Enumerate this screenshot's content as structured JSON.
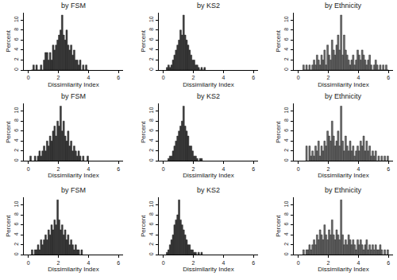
{
  "chart_data": [
    {
      "type": "histogram",
      "title": "by FSM",
      "x_label": "Dissimilarity Index",
      "y_label": "Percent",
      "color": "#3a3a3a",
      "bins": [
        0.2,
        0.3,
        0.4,
        0.5,
        0.6,
        0.7,
        0.8,
        0.9,
        1.0,
        1.1,
        1.2,
        1.3,
        1.4,
        1.5,
        1.6,
        1.7,
        1.8,
        1.9,
        2.0,
        2.1,
        2.2,
        2.3,
        2.4,
        2.5,
        2.6,
        2.7,
        2.8,
        2.9,
        3.0,
        3.1,
        3.2,
        3.3,
        3.4,
        3.5,
        3.6,
        3.7,
        3.8,
        3.9,
        4.0
      ],
      "values": [
        0,
        1,
        0,
        1,
        0,
        0,
        1,
        0,
        2,
        3.5,
        3.5,
        2,
        3.5,
        2,
        5,
        4,
        5,
        6,
        7,
        8,
        11,
        7,
        6,
        8,
        5,
        4,
        5,
        3,
        4,
        2,
        2,
        1,
        2,
        0,
        1,
        0,
        1,
        0
      ],
      "xlim": [
        -0.3,
        6.3
      ],
      "xticks": [
        0,
        2,
        4,
        6
      ],
      "ylim": [
        0,
        11.5
      ],
      "yticks": [
        0,
        2,
        4,
        6,
        8,
        10
      ]
    },
    {
      "type": "histogram",
      "title": "by KS2",
      "x_label": "Dissimilarity Index",
      "y_label": "Percent",
      "color": "#3a3a3a",
      "bins": [
        0.2,
        0.3,
        0.4,
        0.5,
        0.6,
        0.7,
        0.8,
        0.9,
        1.0,
        1.1,
        1.2,
        1.3,
        1.4,
        1.5,
        1.6,
        1.7,
        1.8,
        1.9,
        2.0,
        2.1,
        2.2,
        2.3,
        2.4,
        2.5,
        2.6,
        2.7,
        2.8
      ],
      "values": [
        0.5,
        1,
        0.5,
        1,
        2,
        3,
        4,
        5,
        6,
        8,
        7,
        11,
        7,
        6,
        5,
        4,
        3,
        2,
        2,
        1,
        1,
        0.5,
        0,
        0.5,
        0,
        0.5
      ],
      "xlim": [
        -0.3,
        6.3
      ],
      "xticks": [
        0,
        2,
        4,
        6
      ],
      "ylim": [
        0,
        11.5
      ],
      "yticks": [
        0,
        2,
        4,
        6,
        8,
        10
      ]
    },
    {
      "type": "histogram",
      "title": "by Ethnicity",
      "x_label": "Dissimilarity Index",
      "y_label": "Percent",
      "color": "#6e6e6e",
      "bins": [
        0.3,
        0.4,
        0.5,
        0.6,
        0.7,
        0.8,
        0.9,
        1.0,
        1.1,
        1.2,
        1.3,
        1.4,
        1.5,
        1.6,
        1.7,
        1.8,
        1.9,
        2.0,
        2.1,
        2.2,
        2.3,
        2.4,
        2.5,
        2.6,
        2.7,
        2.8,
        2.9,
        3.0,
        3.1,
        3.2,
        3.3,
        3.4,
        3.5,
        3.6,
        3.7,
        3.8,
        3.9,
        4.0,
        4.1,
        4.2,
        4.3,
        4.4,
        4.5,
        4.6,
        4.7,
        4.8,
        4.9,
        5.0,
        5.1,
        5.2,
        5.3,
        5.4,
        5.5,
        5.6,
        5.7,
        5.8,
        5.9,
        6.0
      ],
      "values": [
        1,
        0,
        1,
        0,
        1,
        0,
        1,
        2,
        1,
        3,
        2,
        1,
        3,
        2,
        4,
        1,
        5,
        3,
        2,
        6,
        4,
        3,
        5,
        7,
        4,
        11,
        3,
        7,
        4,
        3,
        2,
        1,
        2,
        3,
        1,
        2,
        4,
        3,
        2,
        4,
        3,
        2,
        1,
        2,
        3,
        1,
        0,
        1,
        2,
        1,
        0,
        1,
        0,
        1,
        0,
        1,
        0
      ],
      "xlim": [
        -0.3,
        6.3
      ],
      "xticks": [
        0,
        2,
        4,
        6
      ],
      "ylim": [
        0,
        11.5
      ],
      "yticks": [
        0,
        2,
        4,
        6,
        8,
        10
      ]
    },
    {
      "type": "histogram",
      "title": "by FSM",
      "x_label": "Dissimilarity Index",
      "y_label": "Percent",
      "color": "#3a3a3a",
      "bins": [
        0.1,
        0.2,
        0.3,
        0.4,
        0.5,
        0.6,
        0.7,
        0.8,
        0.9,
        1.0,
        1.1,
        1.2,
        1.3,
        1.4,
        1.5,
        1.6,
        1.7,
        1.8,
        1.9,
        2.0,
        2.1,
        2.2,
        2.3,
        2.4,
        2.5,
        2.6,
        2.7,
        2.8,
        2.9,
        3.0,
        3.1,
        3.2,
        3.3,
        3.4,
        3.5,
        3.6,
        3.7,
        3.8,
        3.9,
        4.0
      ],
      "values": [
        1,
        0,
        0,
        1,
        0,
        1,
        2,
        1,
        2,
        3,
        2,
        4,
        3,
        5,
        4,
        6,
        7,
        5,
        8,
        7,
        11,
        6,
        8,
        5,
        4,
        6,
        3,
        4,
        2,
        3,
        2,
        1,
        2,
        1,
        0,
        1,
        0,
        0,
        1
      ],
      "xlim": [
        -0.3,
        6.3
      ],
      "xticks": [
        0,
        2,
        4,
        6
      ],
      "ylim": [
        0,
        11.5
      ],
      "yticks": [
        0,
        2,
        4,
        6,
        8,
        10
      ]
    },
    {
      "type": "histogram",
      "title": "by KS2",
      "x_label": "Dissimilarity Index",
      "y_label": "Percent",
      "color": "#3a3a3a",
      "bins": [
        0.3,
        0.4,
        0.5,
        0.6,
        0.7,
        0.8,
        0.9,
        1.0,
        1.1,
        1.2,
        1.3,
        1.4,
        1.5,
        1.6,
        1.7,
        1.8,
        1.9,
        2.0,
        2.1,
        2.2,
        2.3,
        2.4,
        2.5,
        2.6
      ],
      "values": [
        0.5,
        1,
        1,
        2,
        3,
        4,
        5,
        6,
        7,
        8,
        11,
        7,
        6,
        5,
        3,
        3,
        2,
        1,
        1,
        0.5,
        0,
        0.5,
        0.5
      ],
      "xlim": [
        -0.3,
        6.3
      ],
      "xticks": [
        0,
        2,
        4,
        6
      ],
      "ylim": [
        0,
        11.5
      ],
      "yticks": [
        0,
        2,
        4,
        6,
        8,
        10
      ]
    },
    {
      "type": "histogram",
      "title": "by Ethnicity",
      "x_label": "Dissimilarity Index",
      "y_label": "Percent",
      "color": "#6e6e6e",
      "bins": [
        0.5,
        0.6,
        0.7,
        0.8,
        0.9,
        1.0,
        1.1,
        1.2,
        1.3,
        1.4,
        1.5,
        1.6,
        1.7,
        1.8,
        1.9,
        2.0,
        2.1,
        2.2,
        2.3,
        2.4,
        2.5,
        2.6,
        2.7,
        2.8,
        2.9,
        3.0,
        3.1,
        3.2,
        3.3,
        3.4,
        3.5,
        3.6,
        3.7,
        3.8,
        3.9,
        4.0,
        4.1,
        4.2,
        4.3,
        4.4,
        4.5,
        4.6,
        4.7,
        4.8,
        4.9,
        5.0,
        5.1,
        5.2,
        5.3,
        5.4,
        5.5,
        5.6,
        5.7,
        5.8,
        5.9,
        6.0
      ],
      "values": [
        3,
        0,
        3,
        1,
        2,
        1,
        3,
        2,
        4,
        1,
        3,
        2,
        4,
        3,
        6,
        5,
        4,
        8,
        5,
        3,
        4,
        6,
        3,
        11,
        4,
        2,
        5,
        3,
        2,
        4,
        2,
        3,
        1,
        2,
        3,
        2,
        4,
        3,
        5,
        2,
        4,
        2,
        3,
        1,
        2,
        1,
        2,
        0,
        1,
        0,
        1,
        0,
        1,
        0,
        1
      ],
      "xlim": [
        -0.3,
        6.3
      ],
      "xticks": [
        0,
        2,
        4,
        6
      ],
      "ylim": [
        0,
        11.5
      ],
      "yticks": [
        0,
        2,
        4,
        6,
        8,
        10
      ]
    },
    {
      "type": "histogram",
      "title": "by FSM",
      "x_label": "Dissimilarity Index",
      "y_label": "Percent",
      "color": "#3a3a3a",
      "bins": [
        0.2,
        0.3,
        0.4,
        0.5,
        0.6,
        0.7,
        0.8,
        0.9,
        1.0,
        1.1,
        1.2,
        1.3,
        1.4,
        1.5,
        1.6,
        1.7,
        1.8,
        1.9,
        2.0,
        2.1,
        2.2,
        2.3,
        2.4,
        2.5,
        2.6,
        2.7,
        2.8,
        2.9,
        3.0,
        3.1,
        3.2,
        3.3,
        3.4,
        3.5,
        3.6
      ],
      "values": [
        1,
        0,
        1,
        1,
        2,
        1,
        3,
        2,
        3,
        4,
        3,
        5,
        4,
        6,
        5,
        7,
        6,
        11,
        7,
        5,
        6,
        4,
        5,
        3,
        4,
        2,
        3,
        2,
        1,
        2,
        1,
        1,
        0,
        1
      ],
      "xlim": [
        -0.3,
        6.3
      ],
      "xticks": [
        0,
        2,
        4,
        6
      ],
      "ylim": [
        0,
        11.5
      ],
      "yticks": [
        0,
        2,
        4,
        6,
        8,
        10
      ]
    },
    {
      "type": "histogram",
      "title": "by KS2",
      "x_label": "Dissimilarity Index",
      "y_label": "Percent",
      "color": "#3a3a3a",
      "bins": [
        0.2,
        0.3,
        0.4,
        0.5,
        0.6,
        0.7,
        0.8,
        0.9,
        1.0,
        1.1,
        1.2,
        1.3,
        1.4,
        1.5,
        1.6,
        1.7,
        1.8,
        1.9,
        2.0,
        2.1,
        2.2,
        2.3,
        2.4,
        2.5,
        2.6
      ],
      "values": [
        0.5,
        1,
        2,
        3,
        4,
        6,
        7,
        8,
        11,
        7,
        6,
        5,
        4,
        3,
        2,
        2,
        1,
        1,
        0.5,
        0.5,
        0,
        0.5,
        0,
        0.5
      ],
      "xlim": [
        -0.3,
        6.3
      ],
      "xticks": [
        0,
        2,
        4,
        6
      ],
      "ylim": [
        0,
        11.5
      ],
      "yticks": [
        0,
        2,
        4,
        6,
        8,
        10
      ]
    },
    {
      "type": "histogram",
      "title": "by Ethnicity",
      "x_label": "Dissimilarity Index",
      "y_label": "Percent",
      "color": "#6e6e6e",
      "bins": [
        0.3,
        0.4,
        0.5,
        0.6,
        0.7,
        0.8,
        0.9,
        1.0,
        1.1,
        1.2,
        1.3,
        1.4,
        1.5,
        1.6,
        1.7,
        1.8,
        1.9,
        2.0,
        2.1,
        2.2,
        2.3,
        2.4,
        2.5,
        2.6,
        2.7,
        2.8,
        2.9,
        3.0,
        3.1,
        3.2,
        3.3,
        3.4,
        3.5,
        3.6,
        3.7,
        3.8,
        3.9,
        4.0,
        4.1,
        4.2,
        4.3,
        4.4,
        4.5,
        4.6,
        4.7,
        4.8,
        4.9,
        5.0,
        5.1,
        5.2,
        5.3,
        5.4,
        5.5,
        5.6,
        5.7,
        5.8,
        5.9,
        6.0
      ],
      "values": [
        1,
        0,
        1,
        1,
        2,
        1,
        2,
        3,
        2,
        4,
        3,
        5,
        4,
        3,
        6,
        4,
        3,
        5,
        4,
        7,
        4,
        3,
        5,
        4,
        3,
        11,
        4,
        2,
        3,
        2,
        4,
        3,
        2,
        3,
        2,
        1,
        3,
        2,
        3,
        2,
        1,
        2,
        3,
        1,
        2,
        1,
        2,
        1,
        2,
        1,
        1,
        2,
        1,
        0,
        1,
        0,
        1
      ],
      "xlim": [
        -0.3,
        6.3
      ],
      "xticks": [
        0,
        2,
        4,
        6
      ],
      "ylim": [
        0,
        11.5
      ],
      "yticks": [
        0,
        2,
        4,
        6,
        8,
        10
      ]
    }
  ]
}
